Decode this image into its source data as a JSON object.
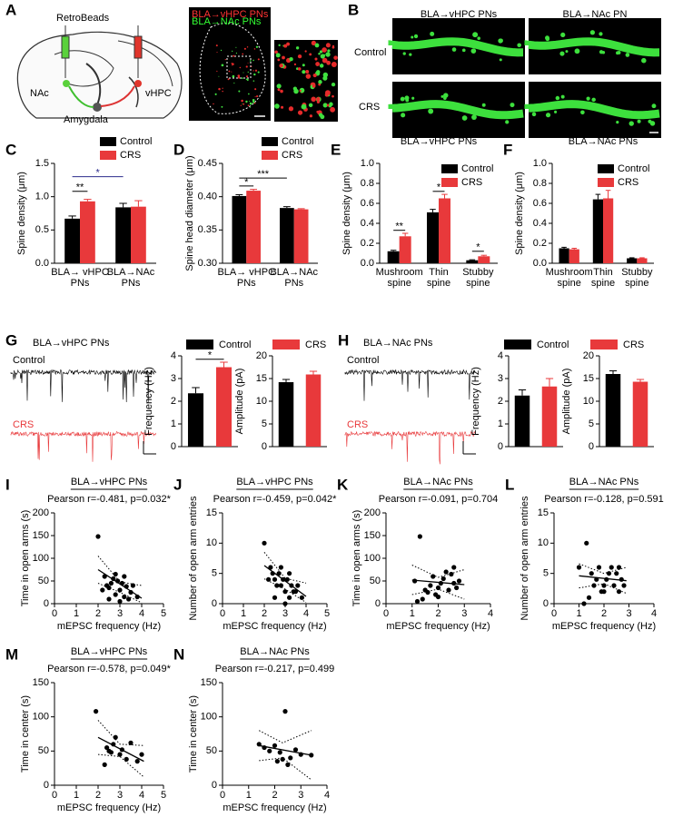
{
  "figure": {
    "A": {
      "panel": "A",
      "retrobeads": "RetroBeads",
      "nac": "NAc",
      "vhpc": "vHPC",
      "amygdala": "Amygdala",
      "red_label": "BLA→vHPC PNs",
      "green_label": "BLA→NAc PNs"
    },
    "B": {
      "panel": "B",
      "columns": [
        "BLA→vHPC PNs",
        "BLA→NAc PN"
      ],
      "rows": [
        "Control",
        "CRS"
      ]
    },
    "G": {
      "panel": "G",
      "title": "BLA→vHPC PNs",
      "traces": [
        "Control",
        "CRS"
      ],
      "legend": [
        "Control",
        "CRS"
      ]
    },
    "H": {
      "panel": "H",
      "title": "BLA→NAc PNs",
      "traces": [
        "Control",
        "CRS"
      ],
      "legend": [
        "Control",
        "CRS"
      ]
    }
  },
  "chart_data": [
    {
      "panel": "C",
      "type": "bar",
      "ylabel": "Spine density (μm)",
      "categories": [
        [
          "BLA→ vHPC",
          "PNs"
        ],
        [
          "BLA→NAc",
          "PNs"
        ]
      ],
      "series": [
        {
          "name": "Control",
          "color": "#000000",
          "values": [
            0.67,
            0.84
          ],
          "errors": [
            0.04,
            0.06
          ]
        },
        {
          "name": "CRS",
          "color": "#e8393b",
          "values": [
            0.93,
            0.85
          ],
          "errors": [
            0.03,
            0.09
          ]
        }
      ],
      "ylim": [
        0,
        1.5
      ],
      "yticks": [
        {
          "value": 0,
          "label": "0.0"
        },
        0.5,
        {
          "value": 1,
          "label": "1.0"
        },
        1.5
      ],
      "legend": "upper right",
      "annotations": [
        {
          "text": "**",
          "y": 1.08,
          "from": [
            0,
            0
          ],
          "to": [
            0,
            1
          ],
          "color": "#000000"
        },
        {
          "text": "*",
          "y": 1.3,
          "from": [
            0,
            0
          ],
          "to": [
            1,
            0
          ],
          "color": "#2b2b8c"
        }
      ]
    },
    {
      "panel": "D",
      "type": "bar",
      "ylabel": "Spine head diameter (μm)",
      "categories": [
        [
          "BLA→ vHPC",
          "PNs"
        ],
        [
          "BLA→NAc",
          "PNs"
        ]
      ],
      "series": [
        {
          "name": "Control",
          "color": "#000000",
          "values": [
            0.401,
            0.383
          ],
          "errors": [
            0.002,
            0.002
          ]
        },
        {
          "name": "CRS",
          "color": "#e8393b",
          "values": [
            0.409,
            0.381
          ],
          "errors": [
            0.002,
            0.001
          ]
        }
      ],
      "ylim": [
        0.3,
        0.45
      ],
      "yticks": [
        {
          "value": 0.3,
          "label": "0.30"
        },
        {
          "value": 0.35,
          "label": "0.35"
        },
        {
          "value": 0.4,
          "label": "0.40"
        },
        {
          "value": 0.45,
          "label": "0.45"
        }
      ],
      "legend": "upper right",
      "annotations": [
        {
          "text": "*",
          "y": 0.416,
          "from": [
            0,
            0
          ],
          "to": [
            0,
            1
          ],
          "color": "#000000"
        },
        {
          "text": "***",
          "y": 0.428,
          "from": [
            0,
            0
          ],
          "to": [
            1,
            0
          ],
          "color": "#000000"
        }
      ]
    },
    {
      "panel": "E",
      "type": "bar",
      "title": "BLA→vHPC PNs",
      "ylabel": "Spine density (μm)",
      "categories": [
        [
          "Mushroom",
          "spine"
        ],
        [
          "Thin",
          "spine"
        ],
        [
          "Stubby",
          "spine"
        ]
      ],
      "series": [
        {
          "name": "Control",
          "color": "#000000",
          "values": [
            0.12,
            0.51,
            0.03
          ],
          "errors": [
            0.01,
            0.03,
            0.005
          ]
        },
        {
          "name": "CRS",
          "color": "#e8393b",
          "values": [
            0.27,
            0.65,
            0.07
          ],
          "errors": [
            0.03,
            0.04,
            0.01
          ]
        }
      ],
      "ylim": [
        0,
        1
      ],
      "yticks": [
        {
          "value": 0,
          "label": "0.0"
        },
        0.2,
        0.4,
        0.6,
        0.8,
        {
          "value": 1,
          "label": "1.0"
        }
      ],
      "legend": "upper right",
      "annotations": [
        {
          "text": "**",
          "y": 0.33,
          "from": [
            0,
            0
          ],
          "to": [
            0,
            1
          ],
          "color": "#000000"
        },
        {
          "text": "*",
          "y": 0.72,
          "from": [
            1,
            0
          ],
          "to": [
            1,
            1
          ],
          "color": "#000000"
        },
        {
          "text": "*",
          "y": 0.12,
          "from": [
            2,
            0
          ],
          "to": [
            2,
            1
          ],
          "color": "#000000"
        }
      ]
    },
    {
      "panel": "F",
      "type": "bar",
      "title": "BLA→NAc PNs",
      "ylabel": "Spine density (μm)",
      "categories": [
        [
          "Mushroom",
          "spine"
        ],
        [
          "Thin",
          "spine"
        ],
        [
          "Stubby",
          "spine"
        ]
      ],
      "series": [
        {
          "name": "Control",
          "color": "#000000",
          "values": [
            0.15,
            0.64,
            0.05
          ],
          "errors": [
            0.01,
            0.05,
            0.005
          ]
        },
        {
          "name": "CRS",
          "color": "#e8393b",
          "values": [
            0.14,
            0.65,
            0.05
          ],
          "errors": [
            0.01,
            0.08,
            0.005
          ]
        }
      ],
      "ylim": [
        0,
        1
      ],
      "yticks": [
        {
          "value": 0,
          "label": "0.0"
        },
        0.2,
        0.4,
        0.6,
        0.8,
        {
          "value": 1,
          "label": "1.0"
        }
      ],
      "legend": "upper right"
    },
    {
      "type": "bar",
      "ylabel": "Frequency (Hz)",
      "values": [
        2.35,
        3.5
      ],
      "errors": [
        0.25,
        0.22
      ],
      "colors": [
        "#000000",
        "#e8393b"
      ],
      "ylim": [
        0,
        4
      ],
      "yticks": [
        0,
        1,
        2,
        3,
        4
      ],
      "annotations": [
        {
          "text": "*",
          "y": 3.85,
          "from": [
            0
          ],
          "to": [
            1
          ],
          "color": "#000000"
        }
      ]
    },
    {
      "type": "bar",
      "ylabel": "Amplitude (pA)",
      "values": [
        14.2,
        15.9
      ],
      "errors": [
        0.6,
        0.7
      ],
      "colors": [
        "#000000",
        "#e8393b"
      ],
      "ylim": [
        0,
        20
      ],
      "yticks": [
        0,
        5,
        10,
        15,
        20
      ]
    },
    {
      "type": "bar",
      "ylabel": "Frequency (Hz)",
      "values": [
        2.25,
        2.65
      ],
      "errors": [
        0.25,
        0.35
      ],
      "colors": [
        "#000000",
        "#e8393b"
      ],
      "ylim": [
        0,
        4
      ],
      "yticks": [
        0,
        1,
        2,
        3,
        4
      ]
    },
    {
      "type": "bar",
      "ylabel": "Amplitude (pA)",
      "values": [
        16.0,
        14.3
      ],
      "errors": [
        0.7,
        0.5
      ],
      "colors": [
        "#000000",
        "#e8393b"
      ],
      "ylim": [
        0,
        20
      ],
      "yticks": [
        0,
        5,
        10,
        15,
        20
      ]
    },
    {
      "panel": "I",
      "type": "scatter",
      "title": "BLA→vHPC PNs",
      "subtitle": "Pearson r=-0.481, p=0.032*",
      "xlabel": "mEPSC frequency (Hz)",
      "ylabel": "Time in open arms (s)",
      "xlim": [
        0,
        5
      ],
      "xticks": [
        0,
        1,
        2,
        3,
        4,
        5
      ],
      "ylim": [
        0,
        200
      ],
      "yticks": [
        0,
        50,
        100,
        150,
        200
      ],
      "x": [
        2,
        2.2,
        2.3,
        2.4,
        2.5,
        2.5,
        2.6,
        2.7,
        2.8,
        2.8,
        2.9,
        3,
        3,
        3.1,
        3.2,
        3.2,
        3.3,
        3.4,
        3.5,
        3.6,
        3.8
      ],
      "values": [
        148,
        30,
        60,
        40,
        35,
        10,
        45,
        55,
        65,
        20,
        50,
        30,
        5,
        45,
        60,
        15,
        38,
        10,
        25,
        40,
        15
      ],
      "fit": {
        "x": [
          2,
          4
        ],
        "y": [
          75,
          12
        ]
      },
      "ci": {
        "x": [
          2,
          3,
          4
        ],
        "upper": [
          105,
          48,
          40
        ],
        "lower": [
          45,
          25,
          2
        ]
      }
    },
    {
      "panel": "J",
      "type": "scatter",
      "title": "BLA→vHPC PNs",
      "subtitle": "Pearson r=-0.459, p=0.042*",
      "xlabel": "mEPSC frequency (Hz)",
      "ylabel": "Number of open arm entries",
      "xlim": [
        0,
        5
      ],
      "xticks": [
        0,
        1,
        2,
        3,
        4,
        5
      ],
      "ylim": [
        0,
        15
      ],
      "yticks": [
        0,
        5,
        10,
        15
      ],
      "x": [
        2,
        2.2,
        2.3,
        2.4,
        2.5,
        2.5,
        2.6,
        2.7,
        2.8,
        2.8,
        2.9,
        3,
        3,
        3.1,
        3.2,
        3.2,
        3.3,
        3.4,
        3.5,
        3.6,
        3.8
      ],
      "values": [
        10,
        4,
        6,
        5,
        4,
        1,
        3,
        5,
        6,
        3,
        4,
        2,
        0,
        4,
        5,
        1,
        3,
        2,
        2,
        3,
        1
      ],
      "fit": {
        "x": [
          2,
          4
        ],
        "y": [
          6.3,
          1.2
        ]
      },
      "ci": {
        "x": [
          2,
          3,
          4
        ],
        "upper": [
          8.5,
          4.2,
          3.4
        ],
        "lower": [
          4.1,
          2.4,
          0.2
        ]
      }
    },
    {
      "panel": "K",
      "type": "scatter",
      "title": "BLA→NAc PNs",
      "subtitle": "Pearson r=-0.091, p=0.704",
      "xlabel": "mEPSC frequency (Hz)",
      "ylabel": "Time in open arms (s)",
      "xlim": [
        0,
        4
      ],
      "xticks": [
        0,
        1,
        2,
        3,
        4
      ],
      "ylim": [
        0,
        200
      ],
      "yticks": [
        0,
        50,
        100,
        150,
        200
      ],
      "x": [
        1.1,
        1.2,
        1.3,
        1.4,
        1.5,
        1.6,
        1.7,
        1.8,
        1.9,
        2,
        2,
        2.1,
        2.2,
        2.3,
        2.4,
        2.5,
        2.6,
        2.6,
        2.7,
        2.8
      ],
      "values": [
        50,
        5,
        148,
        10,
        30,
        25,
        40,
        60,
        20,
        35,
        15,
        45,
        55,
        70,
        30,
        65,
        80,
        45,
        35,
        50
      ],
      "fit": {
        "x": [
          1,
          3
        ],
        "y": [
          52,
          42
        ]
      },
      "ci": {
        "x": [
          1,
          2,
          3
        ],
        "upper": [
          85,
          58,
          75
        ],
        "lower": [
          20,
          32,
          10
        ]
      }
    },
    {
      "panel": "L",
      "type": "scatter",
      "title": "BLA→NAc PNs",
      "subtitle": "Pearson r=-0.128, p=0.591",
      "xlabel": "mEPSC frequency (Hz)",
      "ylabel": "Number of open arm entries",
      "xlim": [
        0,
        4
      ],
      "xticks": [
        0,
        1,
        2,
        3,
        4
      ],
      "ylim": [
        0,
        15
      ],
      "yticks": [
        0,
        5,
        10,
        15
      ],
      "x": [
        1,
        1.2,
        1.3,
        1.4,
        1.5,
        1.6,
        1.7,
        1.8,
        1.9,
        2,
        2,
        2.1,
        2.2,
        2.3,
        2.4,
        2.5,
        2.6,
        2.6,
        2.7,
        2.8
      ],
      "values": [
        6,
        0,
        10,
        1,
        5,
        3,
        4,
        6,
        2,
        3,
        2,
        4,
        5,
        6,
        3,
        5,
        6,
        2,
        4,
        3
      ],
      "fit": {
        "x": [
          1,
          2.9
        ],
        "y": [
          4.6,
          3.8
        ]
      },
      "ci": {
        "x": [
          1,
          2,
          2.9
        ],
        "upper": [
          6.6,
          5,
          6
        ],
        "lower": [
          2.6,
          3.3,
          1.7
        ]
      }
    },
    {
      "panel": "M",
      "type": "scatter",
      "title": "BLA→vHPC PNs",
      "subtitle": "Pearson r=-0.578, p=0.049*",
      "xlabel": "mEPSC frequency (Hz)",
      "ylabel": "Time in center (s)",
      "xlim": [
        0,
        5
      ],
      "xticks": [
        0,
        1,
        2,
        3,
        4,
        5
      ],
      "ylim": [
        0,
        150
      ],
      "yticks": [
        0,
        50,
        100,
        150
      ],
      "x": [
        1.9,
        2.3,
        2.4,
        2.5,
        2.6,
        2.7,
        2.8,
        3,
        3.1,
        3.3,
        3.5,
        3.8,
        4
      ],
      "values": [
        108,
        30,
        55,
        50,
        48,
        60,
        70,
        45,
        52,
        38,
        62,
        35,
        45
      ],
      "fit": {
        "x": [
          2,
          4.1
        ],
        "y": [
          70,
          35
        ]
      },
      "ci": {
        "x": [
          2,
          3,
          4.1
        ],
        "upper": [
          95,
          60,
          58
        ],
        "lower": [
          45,
          42,
          12
        ]
      }
    },
    {
      "panel": "N",
      "type": "scatter",
      "title": "BLA→NAc PNs",
      "subtitle": "Pearson r=-0.217, p=0.499",
      "xlabel": "mEPSC frequency (Hz)",
      "ylabel": "Time in center (s)",
      "xlim": [
        0,
        4
      ],
      "xticks": [
        0,
        1,
        2,
        3,
        4
      ],
      "ylim": [
        0,
        150
      ],
      "yticks": [
        0,
        50,
        100,
        150
      ],
      "x": [
        1.4,
        1.6,
        1.8,
        2,
        2.1,
        2.2,
        2.3,
        2.4,
        2.5,
        2.6,
        2.8,
        3,
        3.4
      ],
      "values": [
        60,
        55,
        50,
        58,
        35,
        48,
        38,
        108,
        30,
        40,
        52,
        45,
        44
      ],
      "fit": {
        "x": [
          1.4,
          3.4
        ],
        "y": [
          58,
          44
        ]
      },
      "ci": {
        "x": [
          1.4,
          2.3,
          3.4
        ],
        "upper": [
          80,
          62,
          80
        ],
        "lower": [
          36,
          40,
          8
        ]
      }
    }
  ]
}
